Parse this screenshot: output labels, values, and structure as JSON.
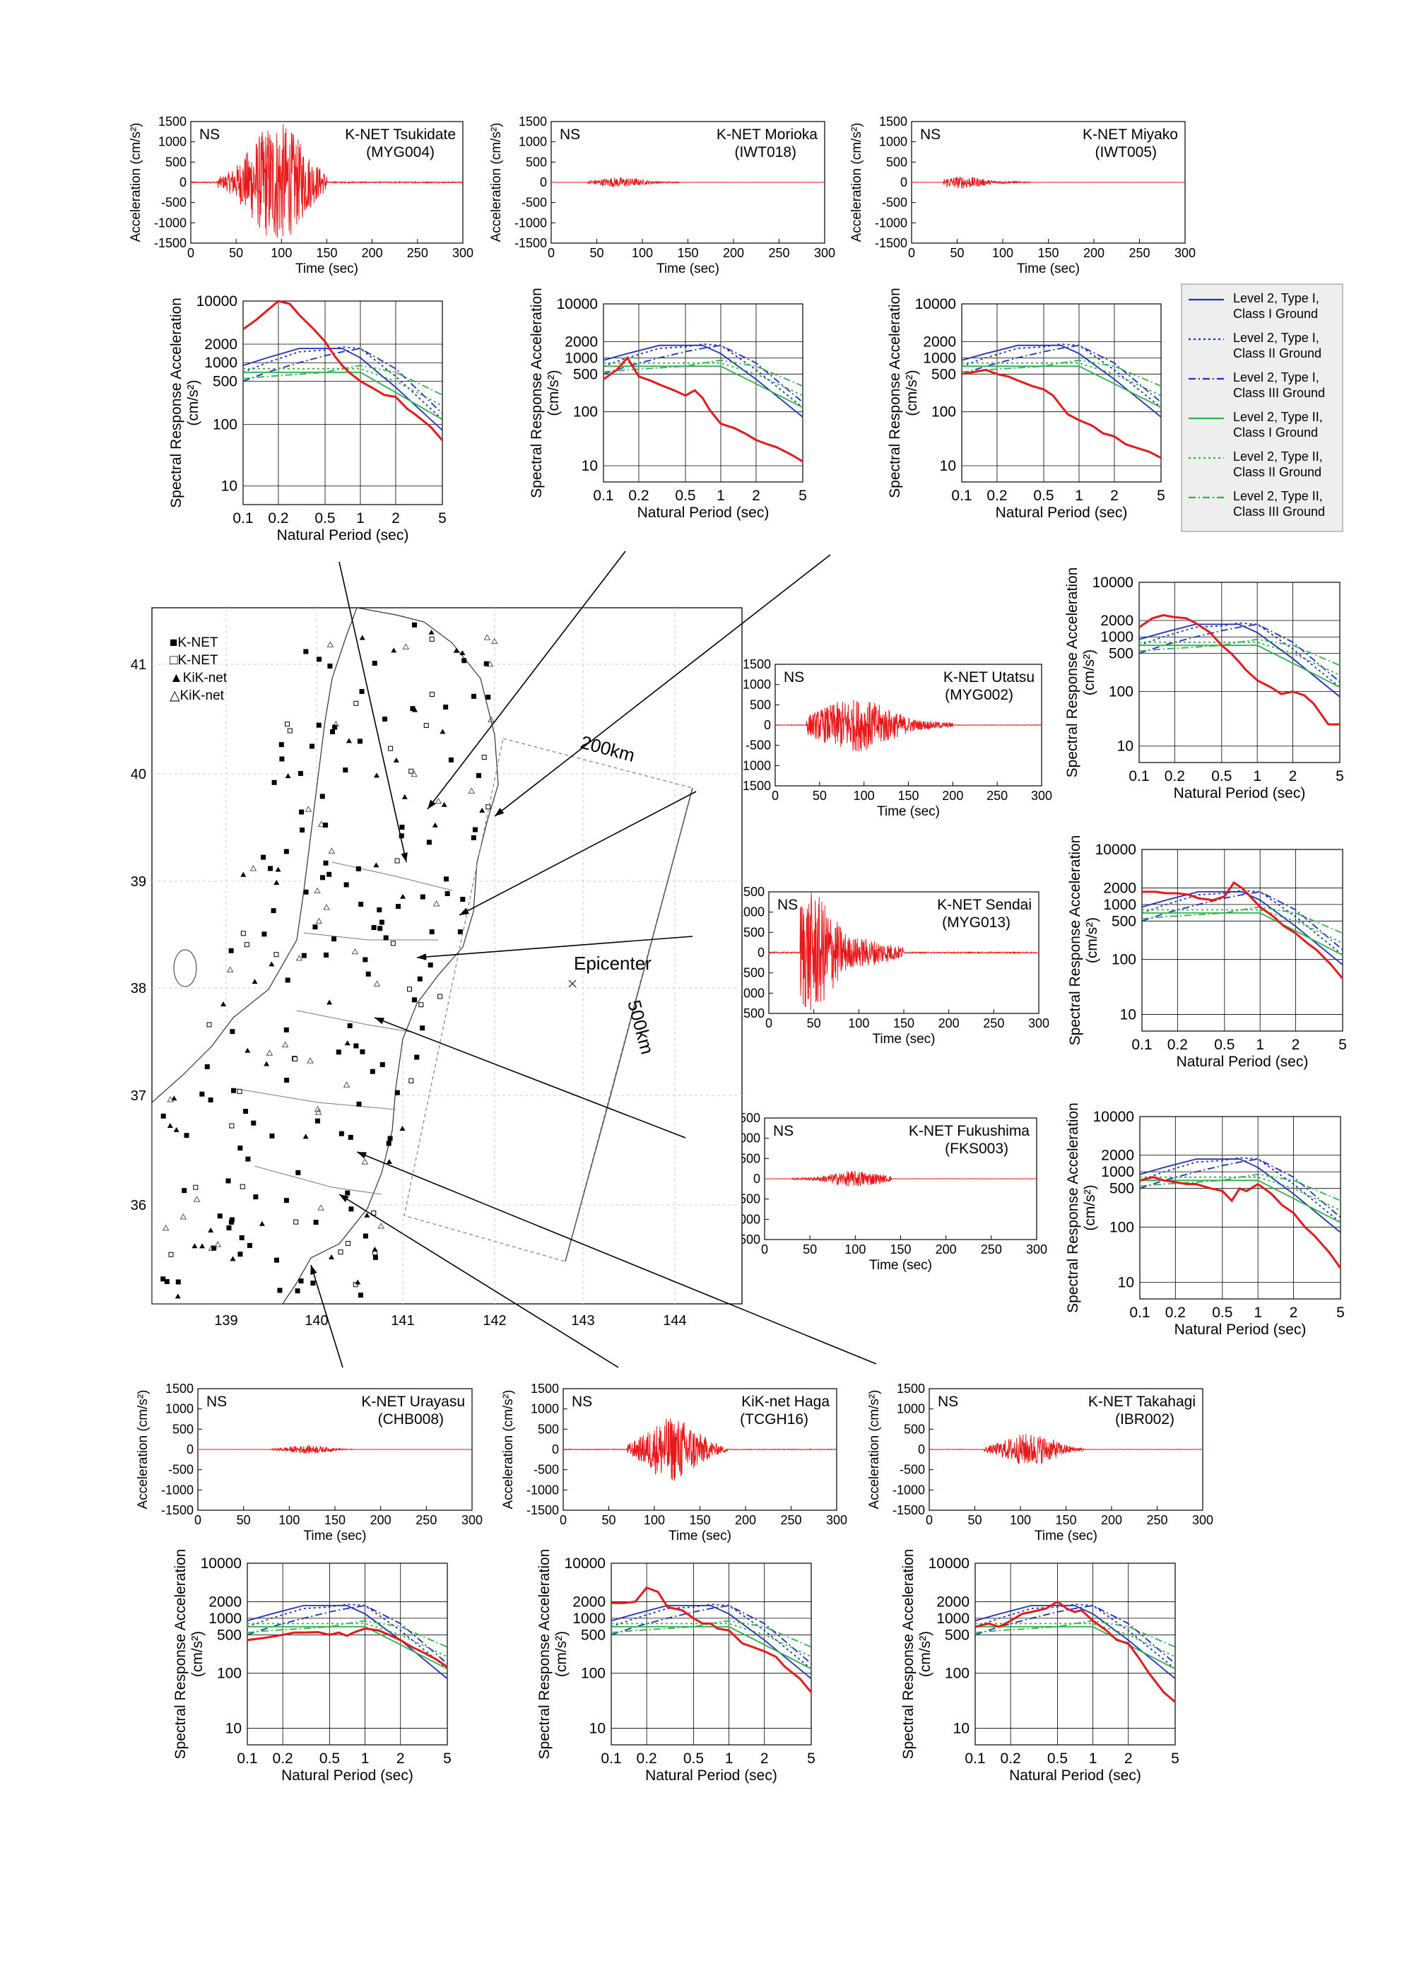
{
  "common": {
    "wave_ylabel": "Acceleration (cm/s²)",
    "wave_xlabel": "Time (sec)",
    "spec_ylabel_line1": "Spectral Response Acceleration",
    "spec_ylabel_line2": "(cm/s²)",
    "spec_xlabel": "Natural Period (sec)",
    "component": "NS",
    "wave_yticks": [
      "1500",
      "1000",
      "500",
      "0",
      "-500",
      "-1000",
      "-1500"
    ],
    "wave_xticks": [
      "0",
      "50",
      "100",
      "150",
      "200",
      "250",
      "300"
    ],
    "spec_yticks": [
      "10000",
      "2000",
      "1000",
      "500",
      "100",
      "10"
    ],
    "spec_xticks": [
      "0.1",
      "0.2",
      "0.5",
      "1",
      "2",
      "5"
    ],
    "record_color": "#e8191b"
  },
  "legend": [
    {
      "line1": "Level 2, Type I,",
      "line2": "Class I Ground",
      "color": "#1f2fbf",
      "dash": "solid"
    },
    {
      "line1": "Level 2, Type I,",
      "line2": "Class II Ground",
      "color": "#1f2fbf",
      "dash": "dot"
    },
    {
      "line1": "Level 2, Type I,",
      "line2": "Class III Ground",
      "color": "#1f2fbf",
      "dash": "dashdot"
    },
    {
      "line1": "Level 2, Type II,",
      "line2": "Class I Ground",
      "color": "#2db34a",
      "dash": "solid"
    },
    {
      "line1": "Level 2, Type II,",
      "line2": "Class II Ground",
      "color": "#2db34a",
      "dash": "dot"
    },
    {
      "line1": "Level 2, Type II,",
      "line2": "Class III Ground",
      "color": "#2db34a",
      "dash": "dashdot"
    }
  ],
  "map": {
    "legend": [
      "■K-NET",
      "□K-NET",
      "▲KiK-net",
      "△KiK-net"
    ],
    "lat_labels": [
      "41",
      "40",
      "39",
      "38",
      "37",
      "36"
    ],
    "lon_labels": [
      "139",
      "140",
      "141",
      "142",
      "143",
      "144"
    ],
    "epicenter_label": "Epicenter",
    "dim_200": "200km",
    "dim_500": "500km"
  },
  "chart_data": [
    {
      "type": "line",
      "kind": "waveform",
      "station": "K-NET Tsukidate",
      "code": "(MYG004)",
      "amplitude_peak": 1500,
      "duration_window": [
        30,
        150
      ],
      "peak_time": 95,
      "xlim": [
        0,
        300
      ],
      "ylim": [
        -1500,
        1500
      ]
    },
    {
      "type": "line",
      "kind": "waveform",
      "station": "K-NET Morioka",
      "code": "(IWT018)",
      "amplitude_peak": 120,
      "duration_window": [
        40,
        140
      ],
      "peak_time": 75,
      "xlim": [
        0,
        300
      ],
      "ylim": [
        -1500,
        1500
      ]
    },
    {
      "type": "line",
      "kind": "waveform",
      "station": "K-NET Miyako",
      "code": "(IWT005)",
      "amplitude_peak": 150,
      "duration_window": [
        35,
        130
      ],
      "peak_time": 55,
      "xlim": [
        0,
        300
      ],
      "ylim": [
        -1500,
        1500
      ]
    },
    {
      "type": "line",
      "kind": "waveform",
      "station": "K-NET Utatsu",
      "code": "(MYG002)",
      "amplitude_peak": 650,
      "duration_window": [
        35,
        200
      ],
      "peak_time": 90,
      "xlim": [
        0,
        300
      ],
      "ylim": [
        -1500,
        1500
      ]
    },
    {
      "type": "line",
      "kind": "waveform",
      "station": "K-NET Sendai",
      "code": "(MYG013)",
      "amplitude_peak": 1500,
      "duration_window": [
        35,
        150
      ],
      "peak_time": 45,
      "xlim": [
        0,
        300
      ],
      "ylim": [
        -1500,
        1500
      ]
    },
    {
      "type": "line",
      "kind": "waveform",
      "station": "K-NET Fukushima",
      "code": "(FKS003)",
      "amplitude_peak": 200,
      "duration_window": [
        30,
        140
      ],
      "peak_time": 100,
      "xlim": [
        0,
        300
      ],
      "ylim": [
        -1500,
        1500
      ]
    },
    {
      "type": "line",
      "kind": "waveform",
      "station": "K-NET Urayasu",
      "code": "(CHB008)",
      "amplitude_peak": 100,
      "duration_window": [
        80,
        170
      ],
      "peak_time": 120,
      "xlim": [
        0,
        300
      ],
      "ylim": [
        -1500,
        1500
      ]
    },
    {
      "type": "line",
      "kind": "waveform",
      "station": "KiK-net Haga",
      "code": "(TCGH16)",
      "amplitude_peak": 800,
      "duration_window": [
        70,
        180
      ],
      "peak_time": 120,
      "xlim": [
        0,
        300
      ],
      "ylim": [
        -1500,
        1500
      ]
    },
    {
      "type": "line",
      "kind": "waveform",
      "station": "K-NET Takahagi",
      "code": "(IBR002)",
      "amplitude_peak": 400,
      "duration_window": [
        60,
        170
      ],
      "peak_time": 110,
      "xlim": [
        0,
        300
      ],
      "ylim": [
        -1500,
        1500
      ]
    },
    {
      "type": "line",
      "kind": "spectrum",
      "station": "K-NET Tsukidate",
      "xscale": "log",
      "yscale": "log",
      "xlim": [
        0.1,
        5
      ],
      "ylim": [
        5,
        10000
      ],
      "x": [
        0.1,
        0.13,
        0.16,
        0.2,
        0.25,
        0.3,
        0.4,
        0.5,
        0.6,
        0.7,
        0.8,
        1.0,
        1.3,
        1.6,
        2.0,
        2.5,
        3.0,
        4.0,
        5.0
      ],
      "y": [
        3500,
        5000,
        7000,
        10000,
        9000,
        6000,
        3500,
        2200,
        1300,
        900,
        700,
        500,
        380,
        300,
        280,
        180,
        140,
        90,
        55
      ]
    },
    {
      "type": "line",
      "kind": "spectrum",
      "station": "K-NET Morioka",
      "xscale": "log",
      "yscale": "log",
      "xlim": [
        0.1,
        5
      ],
      "ylim": [
        5,
        10000
      ],
      "x": [
        0.1,
        0.13,
        0.16,
        0.2,
        0.25,
        0.3,
        0.4,
        0.5,
        0.6,
        0.7,
        0.8,
        1.0,
        1.3,
        1.6,
        2.0,
        2.5,
        3.0,
        4.0,
        5.0
      ],
      "y": [
        400,
        600,
        1000,
        450,
        380,
        320,
        250,
        200,
        250,
        180,
        110,
        60,
        50,
        40,
        30,
        25,
        22,
        16,
        12
      ]
    },
    {
      "type": "line",
      "kind": "spectrum",
      "station": "K-NET Miyako",
      "xscale": "log",
      "yscale": "log",
      "xlim": [
        0.1,
        5
      ],
      "ylim": [
        5,
        10000
      ],
      "x": [
        0.1,
        0.13,
        0.16,
        0.2,
        0.25,
        0.3,
        0.4,
        0.5,
        0.6,
        0.7,
        0.8,
        1.0,
        1.3,
        1.6,
        2.0,
        2.5,
        3.0,
        4.0,
        5.0
      ],
      "y": [
        500,
        550,
        600,
        500,
        450,
        380,
        300,
        260,
        200,
        130,
        90,
        70,
        55,
        40,
        35,
        25,
        22,
        18,
        14
      ]
    },
    {
      "type": "line",
      "kind": "spectrum",
      "station": "K-NET Utatsu",
      "xscale": "log",
      "yscale": "log",
      "xlim": [
        0.1,
        5
      ],
      "ylim": [
        5,
        10000
      ],
      "x": [
        0.1,
        0.13,
        0.16,
        0.2,
        0.25,
        0.3,
        0.4,
        0.5,
        0.6,
        0.7,
        0.8,
        1.0,
        1.3,
        1.6,
        2.0,
        2.5,
        3.0,
        4.0,
        5.0
      ],
      "y": [
        1500,
        2200,
        2500,
        2300,
        2200,
        1800,
        1200,
        700,
        500,
        350,
        250,
        160,
        120,
        90,
        100,
        85,
        60,
        25,
        25
      ]
    },
    {
      "type": "line",
      "kind": "spectrum",
      "station": "K-NET Sendai",
      "xscale": "log",
      "yscale": "log",
      "xlim": [
        0.1,
        5
      ],
      "ylim": [
        5,
        10000
      ],
      "x": [
        0.1,
        0.13,
        0.16,
        0.2,
        0.25,
        0.3,
        0.4,
        0.5,
        0.6,
        0.7,
        0.8,
        1.0,
        1.3,
        1.6,
        2.0,
        2.5,
        3.0,
        4.0,
        5.0
      ],
      "y": [
        1700,
        1700,
        1600,
        1600,
        1500,
        1300,
        1200,
        1400,
        2500,
        2000,
        1500,
        900,
        600,
        400,
        300,
        200,
        150,
        80,
        45
      ]
    },
    {
      "type": "line",
      "kind": "spectrum",
      "station": "K-NET Fukushima",
      "xscale": "log",
      "yscale": "log",
      "xlim": [
        0.1,
        5
      ],
      "ylim": [
        5,
        10000
      ],
      "x": [
        0.1,
        0.13,
        0.16,
        0.2,
        0.25,
        0.3,
        0.4,
        0.5,
        0.6,
        0.7,
        0.8,
        1.0,
        1.3,
        1.6,
        2.0,
        2.5,
        3.0,
        4.0,
        5.0
      ],
      "y": [
        700,
        800,
        700,
        650,
        600,
        600,
        500,
        450,
        300,
        500,
        450,
        600,
        400,
        250,
        180,
        100,
        70,
        35,
        18
      ]
    },
    {
      "type": "line",
      "kind": "spectrum",
      "station": "K-NET Urayasu",
      "xscale": "log",
      "yscale": "log",
      "xlim": [
        0.1,
        5
      ],
      "ylim": [
        5,
        10000
      ],
      "x": [
        0.1,
        0.13,
        0.16,
        0.2,
        0.25,
        0.3,
        0.4,
        0.5,
        0.6,
        0.7,
        0.8,
        1.0,
        1.3,
        1.6,
        2.0,
        2.5,
        3.0,
        4.0,
        5.0
      ],
      "y": [
        400,
        430,
        460,
        500,
        550,
        550,
        560,
        500,
        550,
        480,
        550,
        650,
        600,
        500,
        400,
        300,
        250,
        180,
        130
      ]
    },
    {
      "type": "line",
      "kind": "spectrum",
      "station": "KiK-net Haga",
      "xscale": "log",
      "yscale": "log",
      "xlim": [
        0.1,
        5
      ],
      "ylim": [
        5,
        10000
      ],
      "x": [
        0.1,
        0.13,
        0.16,
        0.2,
        0.25,
        0.3,
        0.4,
        0.5,
        0.6,
        0.7,
        0.8,
        1.0,
        1.3,
        1.6,
        2.0,
        2.5,
        3.0,
        4.0,
        5.0
      ],
      "y": [
        1900,
        1900,
        2000,
        3600,
        3000,
        1600,
        1400,
        1000,
        800,
        800,
        650,
        600,
        350,
        300,
        250,
        200,
        130,
        80,
        45
      ]
    },
    {
      "type": "line",
      "kind": "spectrum",
      "station": "K-NET Takahagi",
      "xscale": "log",
      "yscale": "log",
      "xlim": [
        0.1,
        5
      ],
      "ylim": [
        5,
        10000
      ],
      "x": [
        0.1,
        0.13,
        0.16,
        0.2,
        0.25,
        0.3,
        0.4,
        0.5,
        0.6,
        0.7,
        0.8,
        1.0,
        1.3,
        1.6,
        2.0,
        2.5,
        3.0,
        4.0,
        5.0
      ],
      "y": [
        700,
        800,
        700,
        900,
        1200,
        1300,
        1500,
        2000,
        1500,
        1300,
        1400,
        900,
        600,
        400,
        350,
        180,
        100,
        45,
        30
      ]
    }
  ],
  "code_spectra": {
    "x": [
      0.1,
      0.16,
      0.3,
      0.5,
      0.7,
      1.0,
      2.0,
      5.0
    ],
    "type1_class1": [
      900,
      1200,
      1700,
      1700,
      1700,
      1200,
      400,
      80
    ],
    "type1_class2": [
      700,
      1000,
      1500,
      1600,
      1800,
      1700,
      600,
      120
    ],
    "type1_class3": [
      500,
      700,
      1000,
      1300,
      1500,
      1700,
      800,
      150
    ],
    "type2_class1": [
      700,
      700,
      700,
      700,
      700,
      700,
      330,
      120
    ],
    "type2_class2": [
      800,
      800,
      800,
      800,
      800,
      800,
      500,
      200
    ],
    "type2_class3": [
      550,
      600,
      650,
      700,
      800,
      900,
      700,
      300
    ]
  }
}
